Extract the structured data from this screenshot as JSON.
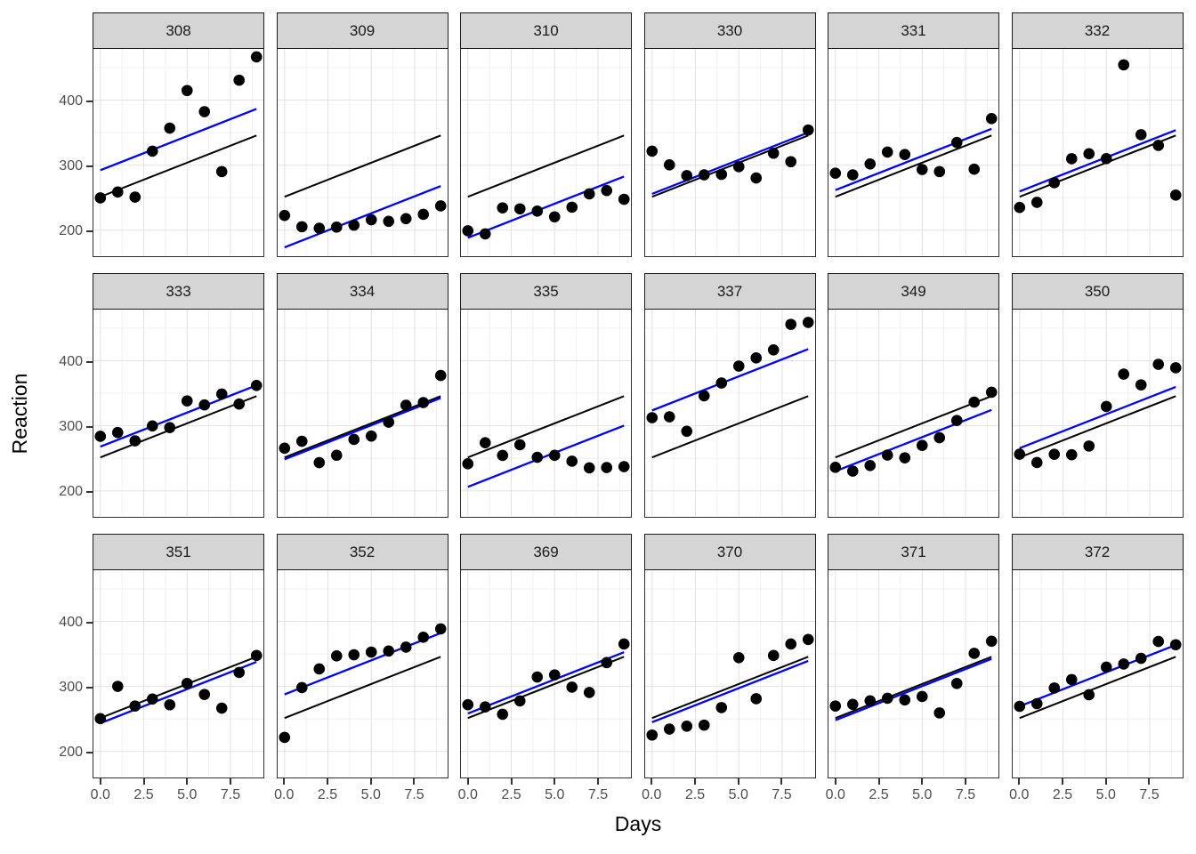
{
  "chart_data": {
    "type": "scatter",
    "title": "",
    "xlabel": "Days",
    "ylabel": "Reaction",
    "x": [
      0,
      1,
      2,
      3,
      4,
      5,
      6,
      7,
      8,
      9
    ],
    "x_domain": [
      -0.45,
      9.45
    ],
    "y_domain": [
      160,
      480
    ],
    "x_tick_values": [
      0,
      2.5,
      5,
      7.5
    ],
    "x_tick_labels": [
      "0.0",
      "2.5",
      "5.0",
      "7.5"
    ],
    "y_tick_values": [
      400,
      300,
      200
    ],
    "y_tick_labels": [
      "400",
      "300",
      "200"
    ],
    "x_minor_gridlines": [
      1.25,
      3.75,
      6.25,
      8.75
    ],
    "y_minor_gridlines": [
      250,
      350,
      450
    ],
    "grid": "on",
    "legend": "none",
    "population_line": {
      "intercept": 251.4,
      "slope": 10.47
    },
    "colors": {
      "population_line": "#000000",
      "subject_line": "#0000ff",
      "point": "#000000",
      "strip_fill": "#d5d5d5",
      "tick_text": "#4d4d4d"
    },
    "facets": [
      {
        "subject": "308",
        "random_intercept": 40.8,
        "reactions": [
          249.6,
          258.7,
          250.8,
          321.4,
          356.9,
          414.7,
          382.2,
          290.1,
          430.6,
          466.4
        ]
      },
      {
        "subject": "309",
        "random_intercept": -77.8,
        "reactions": [
          222.7,
          205.3,
          203.0,
          204.7,
          207.7,
          216.0,
          213.6,
          217.7,
          224.3,
          237.3
        ]
      },
      {
        "subject": "310",
        "random_intercept": -63.1,
        "reactions": [
          199.1,
          194.3,
          234.3,
          232.8,
          229.3,
          220.5,
          235.4,
          255.8,
          261.0,
          247.5
        ]
      },
      {
        "subject": "330",
        "random_intercept": 4.4,
        "reactions": [
          321.5,
          300.4,
          283.9,
          285.1,
          285.8,
          297.6,
          280.2,
          318.3,
          305.3,
          354.0
        ]
      },
      {
        "subject": "331",
        "random_intercept": 10.2,
        "reactions": [
          287.6,
          285.0,
          301.8,
          320.1,
          316.3,
          293.3,
          290.1,
          334.8,
          293.7,
          371.6
        ]
      },
      {
        "subject": "332",
        "random_intercept": 8.2,
        "reactions": [
          234.9,
          242.8,
          273.0,
          309.8,
          317.5,
          310.0,
          454.2,
          346.8,
          330.3,
          253.9
        ]
      },
      {
        "subject": "333",
        "random_intercept": 16.5,
        "reactions": [
          283.8,
          289.6,
          276.8,
          299.8,
          297.2,
          338.2,
          332.0,
          348.8,
          333.4,
          362.0
        ]
      },
      {
        "subject": "334",
        "random_intercept": -3.0,
        "reactions": [
          265.5,
          276.2,
          243.4,
          254.7,
          279.0,
          284.2,
          305.5,
          331.5,
          335.7,
          377.3
        ]
      },
      {
        "subject": "335",
        "random_intercept": -45.3,
        "reactions": [
          241.6,
          273.9,
          254.5,
          270.8,
          251.5,
          254.6,
          245.5,
          235.3,
          235.8,
          237.2
        ]
      },
      {
        "subject": "337",
        "random_intercept": 72.2,
        "reactions": [
          312.4,
          313.8,
          291.6,
          346.1,
          365.7,
          391.8,
          404.3,
          416.7,
          455.9,
          458.9
        ]
      },
      {
        "subject": "349",
        "random_intercept": -21.2,
        "reactions": [
          236.1,
          230.3,
          238.9,
          254.9,
          250.7,
          269.8,
          281.6,
          308.1,
          336.3,
          351.6
        ]
      },
      {
        "subject": "350",
        "random_intercept": 14.1,
        "reactions": [
          256.3,
          243.5,
          256.2,
          255.5,
          268.9,
          329.7,
          379.4,
          362.9,
          394.5,
          389.1
        ]
      },
      {
        "subject": "351",
        "random_intercept": -7.9,
        "reactions": [
          250.5,
          300.1,
          269.9,
          280.6,
          271.8,
          304.6,
          287.7,
          266.6,
          321.5,
          347.6
        ]
      },
      {
        "subject": "352",
        "random_intercept": 36.4,
        "reactions": [
          221.7,
          298.2,
          326.9,
          346.9,
          348.7,
          352.8,
          354.4,
          360.4,
          375.6,
          388.5
        ]
      },
      {
        "subject": "369",
        "random_intercept": 7.0,
        "reactions": [
          271.9,
          268.4,
          257.2,
          277.7,
          314.5,
          317.7,
          298.9,
          290.7,
          336.6,
          365.2
        ]
      },
      {
        "subject": "370",
        "random_intercept": -6.4,
        "reactions": [
          225.3,
          234.5,
          238.9,
          240.5,
          267.5,
          344.2,
          281.1,
          347.6,
          365.2,
          372.2
        ]
      },
      {
        "subject": "371",
        "random_intercept": -3.3,
        "reactions": [
          269.9,
          272.4,
          277.9,
          281.8,
          279.2,
          284.5,
          259.3,
          304.6,
          350.8,
          369.5
        ]
      },
      {
        "subject": "372",
        "random_intercept": 18.1,
        "reactions": [
          269.4,
          273.5,
          297.6,
          310.6,
          287.2,
          329.6,
          334.5,
          343.2,
          369.1,
          364.1
        ]
      }
    ]
  }
}
